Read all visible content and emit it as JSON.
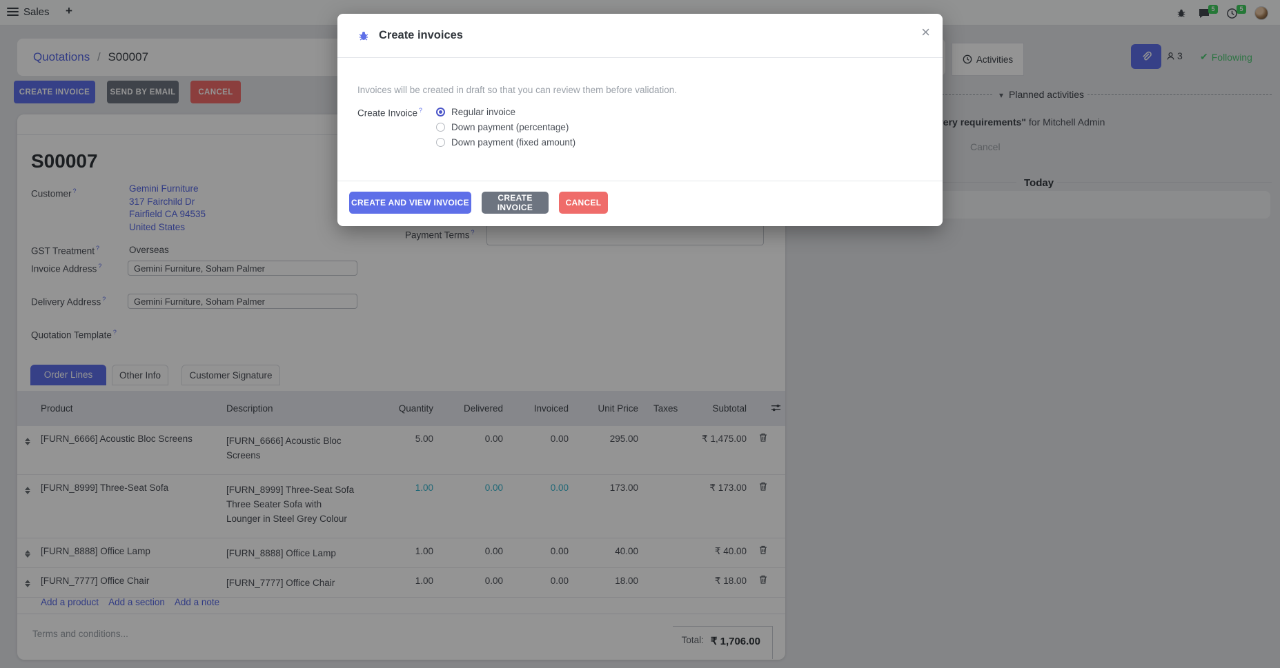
{
  "topbar": {
    "app_name": "Sales",
    "new_tab": "+",
    "message_badge": "5",
    "activity_badge": "5"
  },
  "breadcrumb": {
    "parent": "Quotations",
    "separator": "/",
    "current": "S00007"
  },
  "actions": {
    "create_invoice": "CREATE INVOICE",
    "send_by_email": "SEND BY EMAIL",
    "cancel": "CANCEL"
  },
  "chatter": {
    "activities_label": "Activities",
    "followers_count": "3",
    "following_label": "Following",
    "planned_activities_label": "Planned activities",
    "activity_text_bold": "very requirements\"",
    "activity_text_rest": " for Mitchell Admin",
    "activity_cancel_label": "Cancel",
    "today_label": "Today"
  },
  "modal": {
    "title": "Create invoices",
    "description": "Invoices will be created in draft so that you can review them before validation.",
    "field_label": "Create Invoice",
    "options": [
      {
        "label": "Regular invoice",
        "selected": true
      },
      {
        "label": "Down payment (percentage)",
        "selected": false
      },
      {
        "label": "Down payment (fixed amount)",
        "selected": false
      }
    ],
    "create_and_view_label": "CREATE AND VIEW INVOICE",
    "create_label": "CREATE INVOICE",
    "cancel_label": "CANCEL"
  },
  "form": {
    "record_name": "S00007",
    "help_marker": "?",
    "customer": {
      "label": "Customer",
      "lines": [
        "Gemini Furniture",
        "317 Fairchild Dr",
        "Fairfield CA 94535",
        "United States"
      ]
    },
    "gst": {
      "label": "GST Treatment",
      "value": "Overseas"
    },
    "invoice_address": {
      "label": "Invoice Address",
      "value": "Gemini Furniture, Soham Palmer"
    },
    "delivery_address": {
      "label": "Delivery Address",
      "value": "Gemini Furniture, Soham Palmer"
    },
    "quotation_template": {
      "label": "Quotation Template"
    },
    "payment_terms": {
      "label": "Payment Terms",
      "value": ""
    }
  },
  "tabs": [
    {
      "label": "Order Lines",
      "active": true
    },
    {
      "label": "Other Info",
      "active": false
    },
    {
      "label": "Customer Signature",
      "active": false
    }
  ],
  "order_lines": {
    "columns": [
      "Product",
      "Description",
      "Quantity",
      "Delivered",
      "Invoiced",
      "Unit Price",
      "Taxes",
      "Subtotal"
    ],
    "rows": [
      {
        "product": "[FURN_6666] Acoustic Bloc Screens",
        "description": [
          "[FURN_6666] Acoustic Bloc",
          "Screens"
        ],
        "quantity": "5.00",
        "delivered": "0.00",
        "invoiced": "0.00",
        "unit_price": "295.00",
        "taxes": "",
        "subtotal": "₹ 1,475.00",
        "highlighted": false
      },
      {
        "product": "[FURN_8999] Three-Seat Sofa",
        "description": [
          "[FURN_8999] Three-Seat Sofa",
          "Three Seater Sofa with",
          "Lounger in Steel Grey Colour"
        ],
        "quantity": "1.00",
        "delivered": "0.00",
        "invoiced": "0.00",
        "unit_price": "173.00",
        "taxes": "",
        "subtotal": "₹ 173.00",
        "highlighted": true
      },
      {
        "product": "[FURN_8888] Office Lamp",
        "description": [
          "[FURN_8888] Office Lamp"
        ],
        "quantity": "1.00",
        "delivered": "0.00",
        "invoiced": "0.00",
        "unit_price": "40.00",
        "taxes": "",
        "subtotal": "₹ 40.00",
        "highlighted": false
      },
      {
        "product": "[FURN_7777] Office Chair",
        "description": [
          "[FURN_7777] Office Chair"
        ],
        "quantity": "1.00",
        "delivered": "0.00",
        "invoiced": "0.00",
        "unit_price": "18.00",
        "taxes": "",
        "subtotal": "₹ 18.00",
        "highlighted": false
      }
    ],
    "footer_links": [
      "Add a product",
      "Add a section",
      "Add a note"
    ],
    "terms_placeholder": "Terms and conditions...",
    "total_label": "Total:",
    "total_value": "₹ 1,706.00"
  },
  "icons": {
    "caret_down": "▾",
    "close": "×",
    "check": "✔"
  }
}
